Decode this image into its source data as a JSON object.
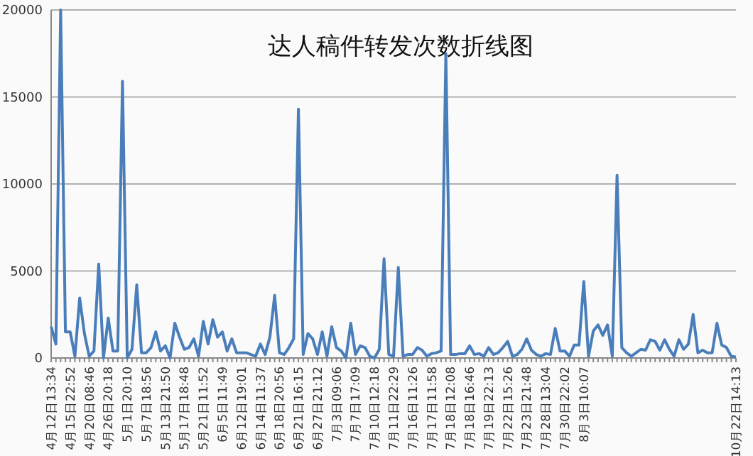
{
  "chart_data": {
    "type": "line",
    "title": "达人稿件转发次数折线图",
    "categories": [
      "4月12日13:34",
      null,
      null,
      null,
      "4月15日22:52",
      null,
      null,
      null,
      "4月20日08:46",
      null,
      null,
      null,
      "4月26日20:18",
      null,
      null,
      null,
      "5月1日20:10",
      null,
      null,
      null,
      "5月7日18:56",
      null,
      null,
      null,
      "5月13日21:50",
      null,
      null,
      null,
      "5月17日18:48",
      null,
      null,
      null,
      "5月21日11:52",
      null,
      null,
      null,
      "6月5日11:49",
      null,
      null,
      null,
      "6月12日19:01",
      null,
      null,
      null,
      "6月14日11:37",
      null,
      null,
      null,
      "6月18日20:56",
      null,
      null,
      null,
      "6月21日16:15",
      null,
      null,
      null,
      "6月27日21:12",
      null,
      null,
      null,
      "7月3日09:06",
      null,
      null,
      null,
      "7月7日17:09",
      null,
      null,
      null,
      "7月10日12:18",
      null,
      null,
      null,
      "7月11日22:29",
      null,
      null,
      null,
      "7月16日11:26",
      null,
      null,
      null,
      "7月17日11:58",
      null,
      null,
      null,
      "7月18日12:08",
      null,
      null,
      null,
      "7月18日16:46",
      null,
      null,
      null,
      "7月19日22:13",
      null,
      null,
      null,
      "7月22日15:26",
      null,
      null,
      null,
      "7月23日21:48",
      null,
      null,
      null,
      "7月28日13:04",
      null,
      null,
      null,
      "7月30日22:02",
      null,
      null,
      null,
      "8月3日10:07",
      null,
      null,
      null,
      null,
      null,
      null,
      null,
      null,
      null,
      null,
      null,
      null,
      null,
      null,
      null,
      null,
      null,
      null,
      null,
      null,
      null,
      null,
      null,
      null,
      null,
      null,
      null,
      null,
      null,
      null,
      null,
      "10月22日14:13"
    ],
    "series": [
      {
        "color": "#4a7ebb",
        "values": [
          1800,
          800,
          20000,
          1500,
          1500,
          100,
          3450,
          1400,
          100,
          400,
          5400,
          0,
          2300,
          400,
          400,
          15900,
          0,
          500,
          4200,
          300,
          300,
          600,
          1500,
          400,
          700,
          0,
          2000,
          1200,
          500,
          600,
          1100,
          100,
          2100,
          800,
          2200,
          1200,
          1500,
          400,
          1100,
          300,
          300,
          300,
          200,
          100,
          800,
          200,
          1200,
          3600,
          300,
          200,
          600,
          1100,
          14300,
          200,
          1400,
          1100,
          200,
          1500,
          100,
          1800,
          600,
          400,
          0,
          2000,
          200,
          700,
          600,
          100,
          0,
          500,
          5700,
          200,
          100,
          5200,
          100,
          200,
          200,
          600,
          450,
          100,
          250,
          300,
          400,
          17500,
          200,
          200,
          250,
          250,
          700,
          200,
          250,
          100,
          600,
          200,
          300,
          600,
          950,
          100,
          200,
          500,
          1100,
          450,
          200,
          100,
          250,
          200,
          1700,
          400,
          400,
          100,
          750,
          750,
          4400,
          100,
          1550,
          1900,
          1300,
          1900,
          100,
          10500,
          600,
          300,
          100,
          300,
          500,
          450,
          1050,
          950,
          450,
          1050,
          500,
          100,
          1050,
          500,
          800,
          2500,
          300,
          450,
          300,
          300,
          2000,
          750,
          600,
          100,
          50
        ]
      }
    ],
    "ylim": [
      0,
      20000
    ],
    "yticks": [
      0,
      5000,
      10000,
      15000,
      20000
    ],
    "grid": "y",
    "line_style": "solid",
    "marker": "none"
  }
}
